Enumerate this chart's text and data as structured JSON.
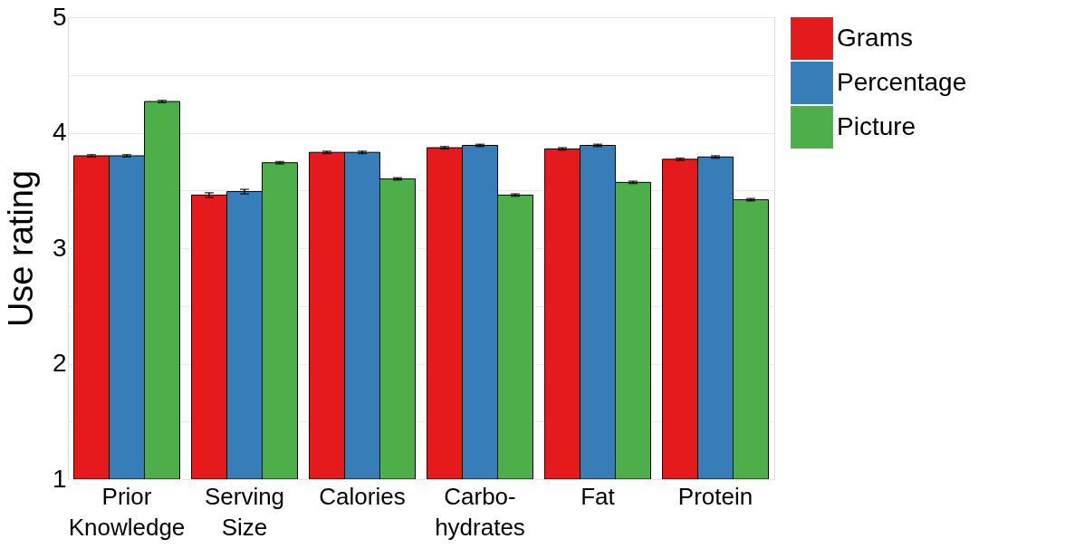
{
  "chart_data": {
    "type": "bar",
    "ylabel": "Use rating",
    "categories": [
      "Prior\nKnowledge",
      "Serving\nSize",
      "Calories",
      "Carbo-\nhydrates",
      "Fat",
      "Protein"
    ],
    "series": [
      {
        "name": "Grams",
        "color": "#e41a1c",
        "values": [
          3.8,
          3.46,
          3.83,
          3.87,
          3.86,
          3.77
        ],
        "errors": [
          0.01,
          0.02,
          0.01,
          0.01,
          0.01,
          0.01
        ]
      },
      {
        "name": "Percentage",
        "color": "#377eb8",
        "values": [
          3.8,
          3.49,
          3.83,
          3.89,
          3.89,
          3.79
        ],
        "errors": [
          0.01,
          0.02,
          0.01,
          0.01,
          0.01,
          0.01
        ]
      },
      {
        "name": "Picture",
        "color": "#4daf4a",
        "values": [
          4.27,
          3.74,
          3.6,
          3.46,
          3.57,
          3.42
        ],
        "errors": [
          0.01,
          0.01,
          0.01,
          0.01,
          0.01,
          0.01
        ]
      }
    ],
    "ylim": [
      1,
      5
    ],
    "yticks": [
      1,
      {
        "value": 1.5,
        "label": null
      },
      2,
      {
        "value": 2.5,
        "label": null
      },
      3,
      {
        "value": 3.5,
        "label": null
      },
      4,
      {
        "value": 4.5,
        "label": null
      },
      5
    ],
    "grid": "y",
    "legend": "right"
  }
}
